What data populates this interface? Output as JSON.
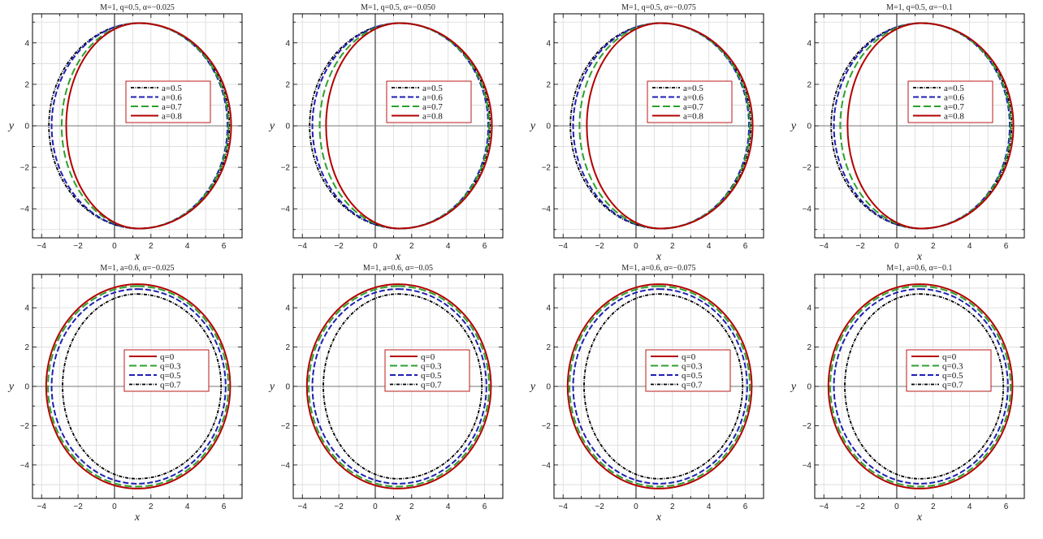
{
  "chart_data": [
    {
      "type": "line",
      "title": "M=1, q=0.5, α=−0.025",
      "xlabel": "x",
      "ylabel": "y",
      "xlim": [
        -4.5,
        7
      ],
      "ylim": [
        -5.4,
        5.4
      ],
      "xticks": [
        "−4",
        "−2",
        "0",
        "2",
        "4",
        "6"
      ],
      "yticks": [
        "−4",
        "−2",
        "0",
        "2",
        "4"
      ],
      "grid": true,
      "legend_position": "center",
      "series": [
        {
          "name": "a=0.5",
          "color": "#000000",
          "style": "dot-dash",
          "center": [
            1.35,
            0
          ],
          "x_min": -3.6,
          "x_max": 6.3,
          "y_max": 4.95
        },
        {
          "name": "a=0.6",
          "color": "#1f1fb4",
          "style": "dashed",
          "center": [
            1.35,
            0
          ],
          "x_min": -3.45,
          "x_max": 6.2,
          "y_max": 4.95
        },
        {
          "name": "a=0.7",
          "color": "#2ca02c",
          "style": "long-dash",
          "center": [
            1.35,
            0
          ],
          "x_min": -2.9,
          "x_max": 6.25,
          "y_max": 4.95
        },
        {
          "name": "a=0.8",
          "color": "#b40000",
          "style": "solid",
          "center": [
            1.35,
            0
          ],
          "x_min": -2.65,
          "x_max": 6.4,
          "y_max": 4.95
        }
      ]
    },
    {
      "type": "line",
      "title": "M=1, q=0.5, α=−0.050",
      "xlabel": "x",
      "ylabel": "y",
      "xlim": [
        -4.5,
        7
      ],
      "ylim": [
        -5.4,
        5.4
      ],
      "xticks": [
        "−4",
        "−2",
        "0",
        "2",
        "4",
        "6"
      ],
      "yticks": [
        "−4",
        "−2",
        "0",
        "2",
        "4"
      ],
      "grid": true,
      "legend_position": "center",
      "series": [
        {
          "name": "a=0.5",
          "color": "#000000",
          "style": "dot-dash",
          "center": [
            1.35,
            0
          ],
          "x_min": -3.6,
          "x_max": 6.3,
          "y_max": 4.95
        },
        {
          "name": "a=0.6",
          "color": "#1f1fb4",
          "style": "dashed",
          "center": [
            1.35,
            0
          ],
          "x_min": -3.45,
          "x_max": 6.2,
          "y_max": 4.95
        },
        {
          "name": "a=0.7",
          "color": "#2ca02c",
          "style": "long-dash",
          "center": [
            1.35,
            0
          ],
          "x_min": -3.05,
          "x_max": 6.25,
          "y_max": 4.95
        },
        {
          "name": "a=0.8",
          "color": "#b40000",
          "style": "solid",
          "center": [
            1.35,
            0
          ],
          "x_min": -2.7,
          "x_max": 6.4,
          "y_max": 4.95
        }
      ]
    },
    {
      "type": "line",
      "title": "M=1, q=0.5, α=−0.075",
      "xlabel": "x",
      "ylabel": "y",
      "xlim": [
        -4.5,
        7
      ],
      "ylim": [
        -5.4,
        5.4
      ],
      "xticks": [
        "−4",
        "−2",
        "0",
        "2",
        "4",
        "6"
      ],
      "yticks": [
        "−4",
        "−2",
        "0",
        "2",
        "4"
      ],
      "grid": true,
      "legend_position": "center",
      "series": [
        {
          "name": "a=0.5",
          "color": "#000000",
          "style": "dot-dash",
          "center": [
            1.35,
            0
          ],
          "x_min": -3.6,
          "x_max": 6.3,
          "y_max": 4.95
        },
        {
          "name": "a=0.6",
          "color": "#1f1fb4",
          "style": "dashed",
          "center": [
            1.35,
            0
          ],
          "x_min": -3.45,
          "x_max": 6.2,
          "y_max": 4.95
        },
        {
          "name": "a=0.7",
          "color": "#2ca02c",
          "style": "long-dash",
          "center": [
            1.35,
            0
          ],
          "x_min": -3.1,
          "x_max": 6.25,
          "y_max": 4.95
        },
        {
          "name": "a=0.8",
          "color": "#b40000",
          "style": "solid",
          "center": [
            1.35,
            0
          ],
          "x_min": -2.7,
          "x_max": 6.4,
          "y_max": 4.95
        }
      ]
    },
    {
      "type": "line",
      "title": "M=1, q=0.5, α=−0.1",
      "xlabel": "x",
      "ylabel": "y",
      "xlim": [
        -4.5,
        7
      ],
      "ylim": [
        -5.4,
        5.4
      ],
      "xticks": [
        "−4",
        "−2",
        "0",
        "2",
        "4",
        "6"
      ],
      "yticks": [
        "−4",
        "−2",
        "0",
        "2",
        "4"
      ],
      "grid": true,
      "legend_position": "center",
      "series": [
        {
          "name": "a=0.5",
          "color": "#000000",
          "style": "dot-dash",
          "center": [
            1.35,
            0
          ],
          "x_min": -3.6,
          "x_max": 6.3,
          "y_max": 4.95
        },
        {
          "name": "a=0.6",
          "color": "#1f1fb4",
          "style": "dashed",
          "center": [
            1.35,
            0
          ],
          "x_min": -3.45,
          "x_max": 6.2,
          "y_max": 4.95
        },
        {
          "name": "a=0.7",
          "color": "#2ca02c",
          "style": "long-dash",
          "center": [
            1.35,
            0
          ],
          "x_min": -3.1,
          "x_max": 6.25,
          "y_max": 4.95
        },
        {
          "name": "a=0.8",
          "color": "#b40000",
          "style": "solid",
          "center": [
            1.35,
            0
          ],
          "x_min": -2.7,
          "x_max": 6.4,
          "y_max": 4.95
        }
      ]
    },
    {
      "type": "line",
      "title": "M=1, a=0.6, α=−0.025",
      "xlabel": "x",
      "ylabel": "y",
      "xlim": [
        -4.5,
        7
      ],
      "ylim": [
        -5.7,
        5.7
      ],
      "xticks": [
        "−4",
        "−2",
        "0",
        "2",
        "4",
        "6"
      ],
      "yticks": [
        "−4",
        "−2",
        "0",
        "2",
        "4"
      ],
      "grid": true,
      "legend_position": "center",
      "series": [
        {
          "name": "q=0",
          "color": "#b40000",
          "style": "solid",
          "center": [
            1.25,
            0
          ],
          "x_min": -3.75,
          "x_max": 6.35,
          "y_max": 5.2
        },
        {
          "name": "q=0.3",
          "color": "#2ca02c",
          "style": "long-dash",
          "center": [
            1.25,
            0
          ],
          "x_min": -3.65,
          "x_max": 6.25,
          "y_max": 5.1
        },
        {
          "name": "q=0.5",
          "color": "#1f1fb4",
          "style": "dashed",
          "center": [
            1.25,
            0
          ],
          "x_min": -3.45,
          "x_max": 6.1,
          "y_max": 4.95
        },
        {
          "name": "q=0.7",
          "color": "#000000",
          "style": "dot-dash",
          "center": [
            1.25,
            0
          ],
          "x_min": -2.85,
          "x_max": 5.85,
          "y_max": 4.7
        }
      ]
    },
    {
      "type": "line",
      "title": "M=1, a=0.6, α=−0.05",
      "xlabel": "x",
      "ylabel": "y",
      "xlim": [
        -4.5,
        7
      ],
      "ylim": [
        -5.7,
        5.7
      ],
      "xticks": [
        "−4",
        "−2",
        "0",
        "2",
        "4",
        "6"
      ],
      "yticks": [
        "−4",
        "−2",
        "0",
        "2",
        "4"
      ],
      "grid": true,
      "legend_position": "center",
      "series": [
        {
          "name": "q=0",
          "color": "#b40000",
          "style": "solid",
          "center": [
            1.25,
            0
          ],
          "x_min": -3.75,
          "x_max": 6.35,
          "y_max": 5.2
        },
        {
          "name": "q=0.3",
          "color": "#2ca02c",
          "style": "long-dash",
          "center": [
            1.25,
            0
          ],
          "x_min": -3.65,
          "x_max": 6.25,
          "y_max": 5.1
        },
        {
          "name": "q=0.5",
          "color": "#1f1fb4",
          "style": "dashed",
          "center": [
            1.25,
            0
          ],
          "x_min": -3.45,
          "x_max": 6.1,
          "y_max": 4.95
        },
        {
          "name": "q=0.7",
          "color": "#000000",
          "style": "dot-dash",
          "center": [
            1.25,
            0
          ],
          "x_min": -2.85,
          "x_max": 5.85,
          "y_max": 4.7
        }
      ]
    },
    {
      "type": "line",
      "title": "M=1, a=0.6, α=−0.075",
      "xlabel": "x",
      "ylabel": "y",
      "xlim": [
        -4.5,
        7
      ],
      "ylim": [
        -5.7,
        5.7
      ],
      "xticks": [
        "−4",
        "−2",
        "0",
        "2",
        "4",
        "6"
      ],
      "yticks": [
        "−4",
        "−2",
        "0",
        "2",
        "4"
      ],
      "grid": true,
      "legend_position": "center",
      "series": [
        {
          "name": "q=0",
          "color": "#b40000",
          "style": "solid",
          "center": [
            1.25,
            0
          ],
          "x_min": -3.75,
          "x_max": 6.35,
          "y_max": 5.2
        },
        {
          "name": "q=0.3",
          "color": "#2ca02c",
          "style": "long-dash",
          "center": [
            1.25,
            0
          ],
          "x_min": -3.65,
          "x_max": 6.25,
          "y_max": 5.1
        },
        {
          "name": "q=0.5",
          "color": "#1f1fb4",
          "style": "dashed",
          "center": [
            1.25,
            0
          ],
          "x_min": -3.45,
          "x_max": 6.1,
          "y_max": 4.95
        },
        {
          "name": "q=0.7",
          "color": "#000000",
          "style": "dot-dash",
          "center": [
            1.25,
            0
          ],
          "x_min": -2.85,
          "x_max": 5.85,
          "y_max": 4.7
        }
      ]
    },
    {
      "type": "line",
      "title": "M=1, a=0.6, α=−0.1",
      "xlabel": "x",
      "ylabel": "y",
      "xlim": [
        -4.5,
        7
      ],
      "ylim": [
        -5.7,
        5.7
      ],
      "xticks": [
        "−4",
        "−2",
        "0",
        "2",
        "4",
        "6"
      ],
      "yticks": [
        "−4",
        "−2",
        "0",
        "2",
        "4"
      ],
      "grid": true,
      "legend_position": "center",
      "series": [
        {
          "name": "q=0",
          "color": "#b40000",
          "style": "solid",
          "center": [
            1.25,
            0
          ],
          "x_min": -3.75,
          "x_max": 6.35,
          "y_max": 5.2
        },
        {
          "name": "q=0.3",
          "color": "#2ca02c",
          "style": "long-dash",
          "center": [
            1.25,
            0
          ],
          "x_min": -3.65,
          "x_max": 6.25,
          "y_max": 5.1
        },
        {
          "name": "q=0.5",
          "color": "#1f1fb4",
          "style": "dashed",
          "center": [
            1.25,
            0
          ],
          "x_min": -3.45,
          "x_max": 6.1,
          "y_max": 4.95
        },
        {
          "name": "q=0.7",
          "color": "#000000",
          "style": "dot-dash",
          "center": [
            1.25,
            0
          ],
          "x_min": -2.85,
          "x_max": 5.85,
          "y_max": 4.7
        }
      ]
    }
  ]
}
